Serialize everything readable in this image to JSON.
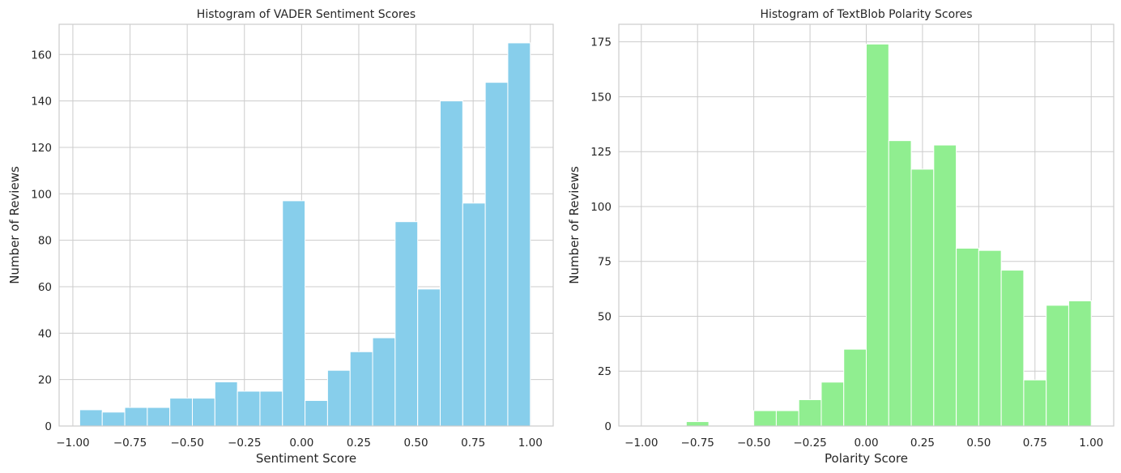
{
  "chart_data": [
    {
      "type": "bar",
      "title": "Histogram of VADER Sentiment Scores",
      "xlabel": "Sentiment Score",
      "ylabel": "Number of Reviews",
      "bar_color": "#87ceeb",
      "xlim": [
        -1.06,
        1.1
      ],
      "ylim": [
        0,
        173
      ],
      "xticks": [
        -1.0,
        -0.75,
        -0.5,
        -0.25,
        0.0,
        0.25,
        0.5,
        0.75,
        1.0
      ],
      "xtick_labels": [
        "−1.00",
        "−0.75",
        "−0.50",
        "−0.25",
        "0.00",
        "0.25",
        "0.50",
        "0.75",
        "1.00"
      ],
      "yticks": [
        0,
        20,
        40,
        60,
        80,
        100,
        120,
        140,
        160
      ],
      "ytick_labels": [
        "0",
        "20",
        "40",
        "60",
        "80",
        "100",
        "120",
        "140",
        "160"
      ],
      "bin_start": -0.97,
      "bin_end": 1.0,
      "values": [
        7,
        6,
        8,
        8,
        12,
        12,
        19,
        15,
        15,
        97,
        11,
        24,
        32,
        38,
        88,
        59,
        140,
        96,
        148,
        165
      ],
      "grid": true
    },
    {
      "type": "bar",
      "title": "Histogram of TextBlob Polarity Scores",
      "xlabel": "Polarity Score",
      "ylabel": "Number of Reviews",
      "bar_color": "#90ee90",
      "xlim": [
        -1.1,
        1.1
      ],
      "ylim": [
        0,
        183
      ],
      "xticks": [
        -1.0,
        -0.75,
        -0.5,
        -0.25,
        0.0,
        0.25,
        0.5,
        0.75,
        1.0
      ],
      "xtick_labels": [
        "−1.00",
        "−0.75",
        "−0.50",
        "−0.25",
        "0.00",
        "0.25",
        "0.50",
        "0.75",
        "1.00"
      ],
      "yticks": [
        0,
        25,
        50,
        75,
        100,
        125,
        150,
        175
      ],
      "ytick_labels": [
        "0",
        "25",
        "50",
        "75",
        "100",
        "125",
        "150",
        "175"
      ],
      "bin_start": -1.0,
      "bin_end": 1.0,
      "values": [
        0,
        0,
        2,
        0,
        0,
        7,
        7,
        12,
        20,
        35,
        174,
        130,
        117,
        128,
        81,
        80,
        71,
        21,
        55,
        57
      ],
      "grid": true
    }
  ]
}
